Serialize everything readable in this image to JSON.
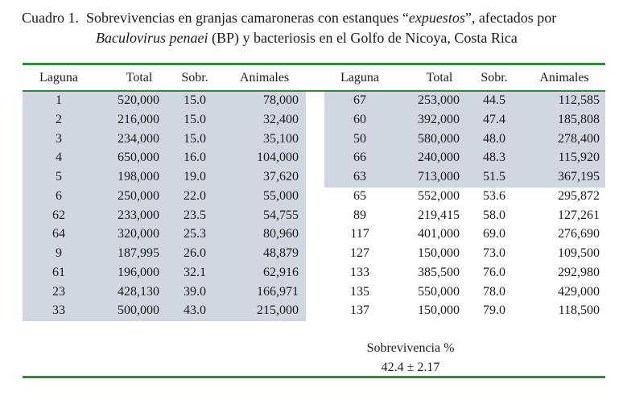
{
  "caption": {
    "prefix": "Cuadro 1.",
    "text_1": "Sobrevivencias en granjas camaroneras con estanques “",
    "italic_1": "expuestos",
    "text_2": "”, afectados por",
    "italic_2": "Baculovirus penaei",
    "text_3": " (BP) y bacteriosis en el Golfo de Nicoya, Costa Rica"
  },
  "headers": [
    "Laguna",
    "Total",
    "Sobr.",
    "Animales"
  ],
  "left_rows": [
    [
      "1",
      "520,000",
      "15.0",
      "78,000"
    ],
    [
      "2",
      "216,000",
      "15.0",
      "32,400"
    ],
    [
      "3",
      "234,000",
      "15.0",
      "35,100"
    ],
    [
      "4",
      "650,000",
      "16.0",
      "104,000"
    ],
    [
      "5",
      "198,000",
      "19.0",
      "37,620"
    ],
    [
      "6",
      "250,000",
      "22.0",
      "55,000"
    ],
    [
      "62",
      "233,000",
      "23.5",
      "54,755"
    ],
    [
      "64",
      "320,000",
      "25.3",
      "80,960"
    ],
    [
      "9",
      "187,995",
      "26.0",
      "48,879"
    ],
    [
      "61",
      "196,000",
      "32.1",
      "62,916"
    ],
    [
      "23",
      "428,130",
      "39.0",
      "166,971"
    ],
    [
      "33",
      "500,000",
      "43.0",
      "215,000"
    ]
  ],
  "right_rows": [
    [
      "67",
      "253,000",
      "44.5",
      "112,585"
    ],
    [
      "60",
      "392,000",
      "47.4",
      "185,808"
    ],
    [
      "50",
      "580,000",
      "48.0",
      "278,400"
    ],
    [
      "66",
      "240,000",
      "48.3",
      "115,920"
    ],
    [
      "63",
      "713,000",
      "51.5",
      "367,195"
    ],
    [
      "65",
      "552,000",
      "53.6",
      "295,872"
    ],
    [
      "89",
      "219,415",
      "58.0",
      "127,261"
    ],
    [
      "117",
      "401,000",
      "69.0",
      "276,690"
    ],
    [
      "127",
      "150,000",
      "73.0",
      "109,500"
    ],
    [
      "133",
      "385,500",
      "76.0",
      "292,980"
    ],
    [
      "135",
      "550,000",
      "78.0",
      "429,000"
    ],
    [
      "137",
      "150,000",
      "79.0",
      "118,500"
    ]
  ],
  "footer": {
    "label": "Sobrevivencia %",
    "value": "42.4 ± 2.17"
  },
  "colors": {
    "rule": "#2e8b3d",
    "shade": "#d0d7e1"
  }
}
